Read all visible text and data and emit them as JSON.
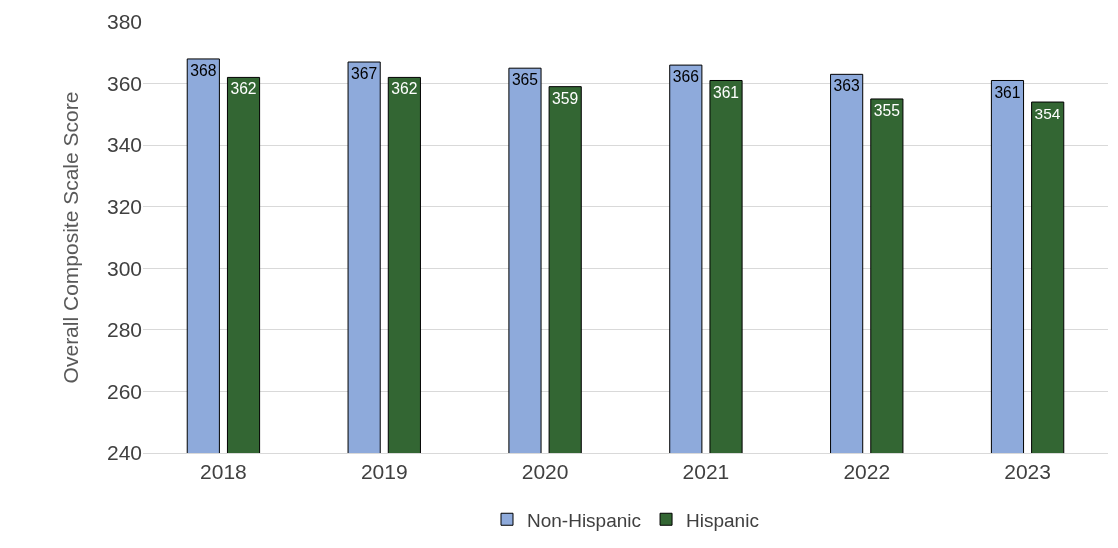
{
  "chart_data": {
    "type": "bar",
    "ylabel": "Overall Composite Scale Score",
    "categories": [
      "2018",
      "2019",
      "2020",
      "2021",
      "2022",
      "2023"
    ],
    "series": [
      {
        "name": "Non-Hispanic",
        "color": "#8eaadb",
        "values": [
          368,
          367,
          365,
          366,
          363,
          361
        ]
      },
      {
        "name": "Hispanic",
        "color": "#336633",
        "values": [
          362,
          362,
          359,
          361,
          355,
          354
        ]
      }
    ],
    "ylim": [
      240,
      380
    ],
    "yticks": [
      240,
      260,
      280,
      300,
      320,
      340,
      360,
      380
    ],
    "grid": "y",
    "legend": "bottom",
    "data_labels": true
  }
}
